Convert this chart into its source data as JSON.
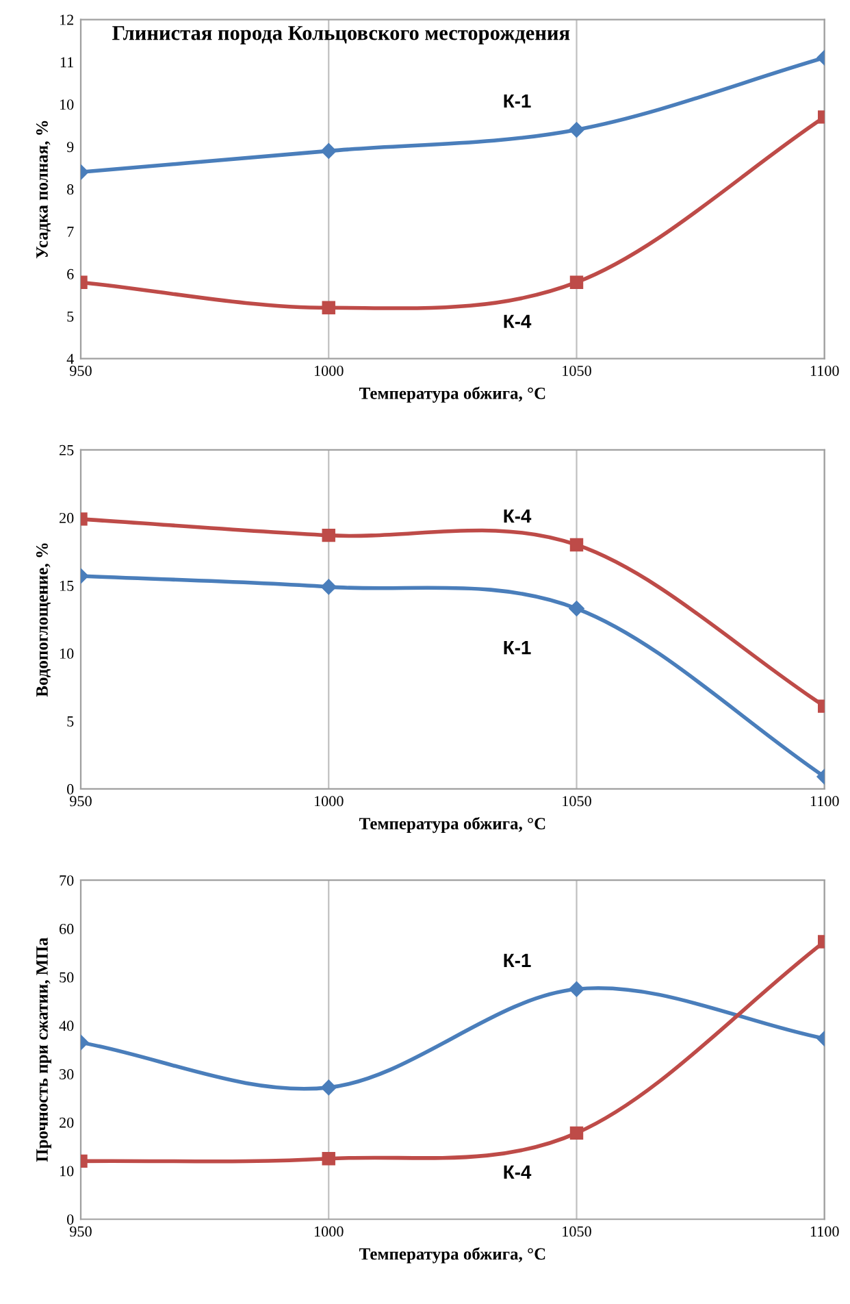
{
  "chart_data": [
    {
      "type": "line",
      "title": "Глинистая порода Кольцовского месторождения",
      "xlabel": "Температура обжига, °C",
      "ylabel": "Усадка полная, %",
      "x": [
        950,
        1000,
        1050,
        1100
      ],
      "xlim": [
        950,
        1100
      ],
      "xticks": [
        950,
        1000,
        1050,
        1100
      ],
      "ylim": [
        4,
        12
      ],
      "yticks": [
        4,
        5,
        6,
        7,
        8,
        9,
        10,
        11,
        12
      ],
      "grid": "x",
      "legend": false,
      "series": [
        {
          "name": "К-1",
          "color": "#4a7ebb",
          "marker": "diamond",
          "values": [
            8.4,
            8.9,
            9.4,
            11.1
          ]
        },
        {
          "name": "К-4",
          "color": "#be4b48",
          "marker": "square",
          "values": [
            5.8,
            5.2,
            5.8,
            9.7
          ]
        }
      ]
    },
    {
      "type": "line",
      "xlabel": "Температура обжига, °C",
      "ylabel": "Водопоглощение, %",
      "x": [
        950,
        1000,
        1050,
        1100
      ],
      "xlim": [
        950,
        1100
      ],
      "xticks": [
        950,
        1000,
        1050,
        1100
      ],
      "ylim": [
        0,
        25
      ],
      "yticks": [
        0,
        5,
        10,
        15,
        20,
        25
      ],
      "grid": "x",
      "legend": false,
      "series": [
        {
          "name": "К-1",
          "color": "#4a7ebb",
          "marker": "diamond",
          "values": [
            15.7,
            14.9,
            13.3,
            0.9
          ]
        },
        {
          "name": "К-4",
          "color": "#be4b48",
          "marker": "square",
          "values": [
            19.9,
            18.7,
            18.0,
            6.1
          ]
        }
      ]
    },
    {
      "type": "line",
      "xlabel": "Температура обжига, °C",
      "ylabel": "Прочность при сжатии, МПа",
      "x": [
        950,
        1000,
        1050,
        1100
      ],
      "xlim": [
        950,
        1100
      ],
      "xticks": [
        950,
        1000,
        1050,
        1100
      ],
      "ylim": [
        0,
        70
      ],
      "yticks": [
        0,
        10,
        20,
        30,
        40,
        50,
        60,
        70
      ],
      "grid": "x",
      "legend": false,
      "series": [
        {
          "name": "К-1",
          "color": "#4a7ebb",
          "marker": "diamond",
          "values": [
            36.5,
            27.2,
            47.5,
            37.3
          ]
        },
        {
          "name": "К-4",
          "color": "#be4b48",
          "marker": "square",
          "values": [
            12.0,
            12.5,
            17.8,
            57.3
          ]
        }
      ]
    }
  ]
}
